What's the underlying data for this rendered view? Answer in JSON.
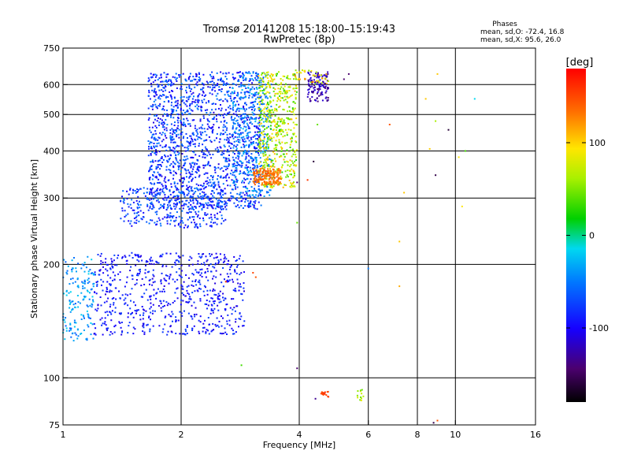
{
  "chart_data": {
    "type": "scatter",
    "title": "Tromsø 20141208 15:18:00–15:19:43",
    "subtitle": "RwPretec (8p)",
    "phases_box": {
      "title": "Phases",
      "line1": "mean, sd,O: -72.4, 16.8",
      "line2": "mean, sd,X:  95.6, 26.0"
    },
    "xlabel": "Frequency [MHz]",
    "ylabel": "Stationary phase Virtual Height [km]",
    "x_scale": "log",
    "y_scale": "log",
    "xlim": [
      1,
      16
    ],
    "ylim": [
      75,
      750
    ],
    "xticks": [
      1,
      2,
      4,
      6,
      8,
      10,
      16
    ],
    "xtick_labels": [
      "1",
      "2",
      "4",
      "6",
      "8",
      "10",
      "16"
    ],
    "yticks": [
      75,
      100,
      200,
      300,
      400,
      500,
      600,
      750
    ],
    "ytick_labels": [
      "75",
      "100",
      "200",
      "300",
      "400",
      "500",
      "600",
      "750"
    ],
    "grid": true,
    "colorbar": {
      "label": "[deg]",
      "range": [
        -180,
        180
      ],
      "ticks": [
        100,
        0,
        -100
      ],
      "tick_labels": [
        "100",
        "0",
        "-100"
      ]
    },
    "point_clusters": [
      {
        "id": "Es-low",
        "fmin": 1.0,
        "fmax": 1.2,
        "hmin": 125,
        "hmax": 210,
        "phase_min": -75,
        "phase_max": -20,
        "n": 160
      },
      {
        "id": "E-region",
        "fmin": 1.2,
        "fmax": 2.9,
        "hmin": 130,
        "hmax": 215,
        "phase_min": -120,
        "phase_max": -80,
        "n": 700
      },
      {
        "id": "F1-trace",
        "fmin": 1.4,
        "fmax": 2.6,
        "hmin": 250,
        "hmax": 320,
        "phase_min": -115,
        "phase_max": -60,
        "n": 320
      },
      {
        "id": "F-layer",
        "fmin": 1.65,
        "fmax": 3.2,
        "hmin": 280,
        "hmax": 650,
        "phase_min": -120,
        "phase_max": -55,
        "n": 1600
      },
      {
        "id": "F-mid",
        "fmin": 2.7,
        "fmax": 3.4,
        "hmin": 300,
        "hmax": 650,
        "phase_min": -80,
        "phase_max": -30,
        "n": 350
      },
      {
        "id": "X-mode",
        "fmin": 3.15,
        "fmax": 3.95,
        "hmin": 320,
        "hmax": 650,
        "phase_min": 15,
        "phase_max": 120,
        "n": 550
      },
      {
        "id": "X-cusp",
        "fmin": 3.05,
        "fmax": 3.6,
        "hmin": 325,
        "hmax": 360,
        "phase_min": 130,
        "phase_max": 155,
        "n": 160
      },
      {
        "id": "O-high",
        "fmin": 4.2,
        "fmax": 4.75,
        "hmin": 540,
        "hmax": 650,
        "phase_min": -150,
        "phase_max": -110,
        "n": 120
      },
      {
        "id": "X-high",
        "fmin": 3.9,
        "fmax": 4.8,
        "hmin": 600,
        "hmax": 655,
        "phase_min": 40,
        "phase_max": 160,
        "n": 40
      },
      {
        "id": "Es-red",
        "fmin": 4.5,
        "fmax": 4.75,
        "hmin": 89,
        "hmax": 92,
        "phase_min": 150,
        "phase_max": 165,
        "n": 18
      },
      {
        "id": "Es-green",
        "fmin": 5.6,
        "fmax": 5.85,
        "hmin": 87,
        "hmax": 93,
        "phase_min": 40,
        "phase_max": 90,
        "n": 12
      }
    ],
    "isolated_points": [
      {
        "f": 2.85,
        "h": 108,
        "phase": 30
      },
      {
        "f": 2.6,
        "h": 180,
        "phase": 160
      },
      {
        "f": 3.05,
        "h": 190,
        "phase": 155
      },
      {
        "f": 3.1,
        "h": 185,
        "phase": 150
      },
      {
        "f": 3.95,
        "h": 330,
        "phase": -150
      },
      {
        "f": 3.95,
        "h": 258,
        "phase": 40
      },
      {
        "f": 3.95,
        "h": 106,
        "phase": -150
      },
      {
        "f": 4.2,
        "h": 335,
        "phase": 160
      },
      {
        "f": 4.4,
        "h": 88,
        "phase": -140
      },
      {
        "f": 4.35,
        "h": 375,
        "phase": -165
      },
      {
        "f": 4.45,
        "h": 470,
        "phase": 40
      },
      {
        "f": 5.2,
        "h": 620,
        "phase": -150
      },
      {
        "f": 5.35,
        "h": 640,
        "phase": -150
      },
      {
        "f": 6.0,
        "h": 195,
        "phase": -60
      },
      {
        "f": 6.8,
        "h": 470,
        "phase": 150
      },
      {
        "f": 7.2,
        "h": 230,
        "phase": 110
      },
      {
        "f": 7.2,
        "h": 175,
        "phase": 120
      },
      {
        "f": 7.4,
        "h": 310,
        "phase": 110
      },
      {
        "f": 8.4,
        "h": 550,
        "phase": 110
      },
      {
        "f": 8.9,
        "h": 480,
        "phase": 60
      },
      {
        "f": 9.0,
        "h": 640,
        "phase": 110
      },
      {
        "f": 8.9,
        "h": 345,
        "phase": -160
      },
      {
        "f": 8.6,
        "h": 405,
        "phase": 110
      },
      {
        "f": 9.6,
        "h": 455,
        "phase": -165
      },
      {
        "f": 10.2,
        "h": 385,
        "phase": 100
      },
      {
        "f": 10.6,
        "h": 400,
        "phase": 30
      },
      {
        "f": 10.4,
        "h": 285,
        "phase": 100
      },
      {
        "f": 11.2,
        "h": 550,
        "phase": -20
      },
      {
        "f": 8.8,
        "h": 76,
        "phase": -160
      },
      {
        "f": 9.0,
        "h": 77,
        "phase": 150
      }
    ]
  }
}
